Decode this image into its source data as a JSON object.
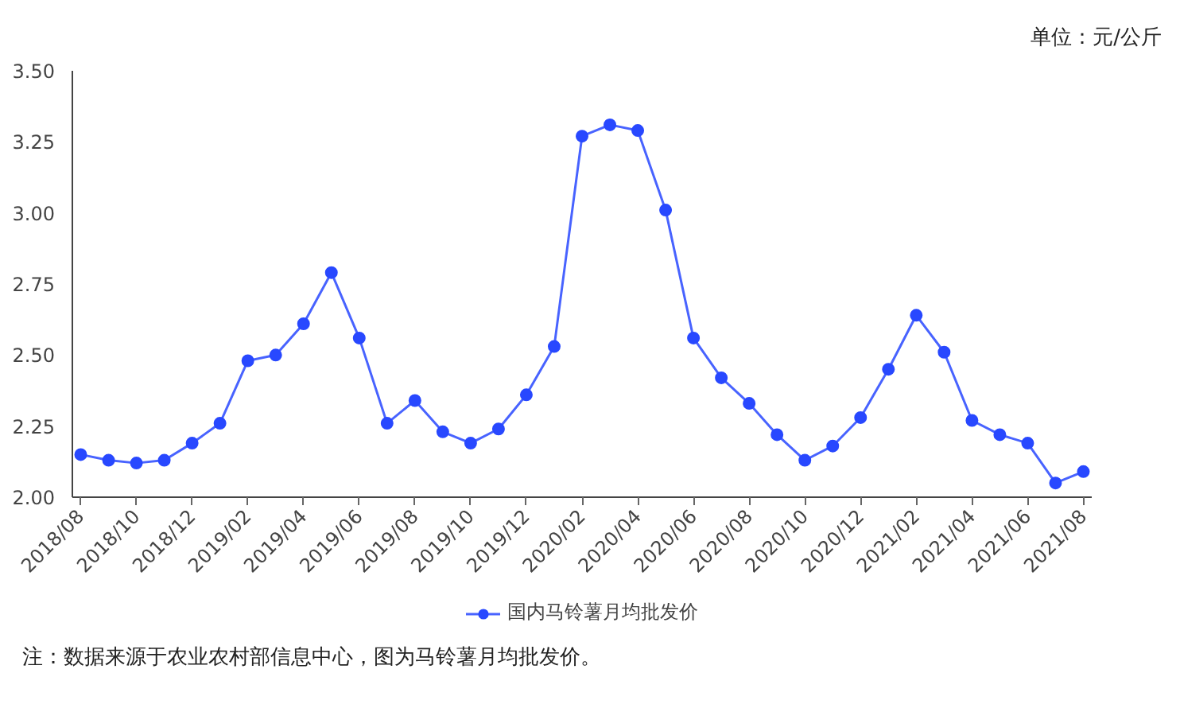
{
  "chart_data": {
    "type": "line",
    "categories": [
      "2018/08",
      null,
      "2018/10",
      null,
      "2018/12",
      null,
      "2019/02",
      null,
      "2019/04",
      null,
      "2019/06",
      null,
      "2019/08",
      null,
      "2019/10",
      null,
      "2019/12",
      null,
      "2020/02",
      null,
      "2020/04",
      null,
      "2020/06",
      null,
      "2020/08",
      null,
      "2020/10",
      null,
      "2020/12",
      null,
      "2021/02",
      null,
      "2021/04",
      null,
      "2021/06",
      null,
      "2021/08"
    ],
    "series": [
      {
        "name": "国内马铃薯月均批发价",
        "color": "#2848ff",
        "values": [
          2.15,
          2.13,
          2.12,
          2.13,
          2.19,
          2.26,
          2.48,
          2.5,
          2.61,
          2.79,
          2.56,
          2.26,
          2.34,
          2.23,
          2.19,
          2.24,
          2.36,
          2.53,
          3.27,
          3.31,
          3.29,
          3.01,
          2.56,
          2.42,
          2.33,
          2.22,
          2.13,
          2.18,
          2.28,
          2.45,
          2.64,
          2.51,
          2.27,
          2.22,
          2.19,
          2.05,
          2.09
        ]
      }
    ],
    "ylim": [
      2.0,
      3.5
    ],
    "yticks": [
      {
        "value": 2.0,
        "label": "2.00"
      },
      {
        "value": 2.25,
        "label": "2.25"
      },
      {
        "value": 2.5,
        "label": "2.50"
      },
      {
        "value": 2.75,
        "label": "2.75"
      },
      {
        "value": 3.0,
        "label": "3.00"
      },
      {
        "value": 3.25,
        "label": "3.25"
      },
      {
        "value": 3.5,
        "label": "3.50"
      }
    ],
    "grid": false,
    "legend": "bottom",
    "marker": "circle",
    "line_style": "solid",
    "annotations": [
      "单位：元/公斤",
      "注：数据来源于农业农村部信息中心，图为马铃薯月均批发价。"
    ]
  }
}
